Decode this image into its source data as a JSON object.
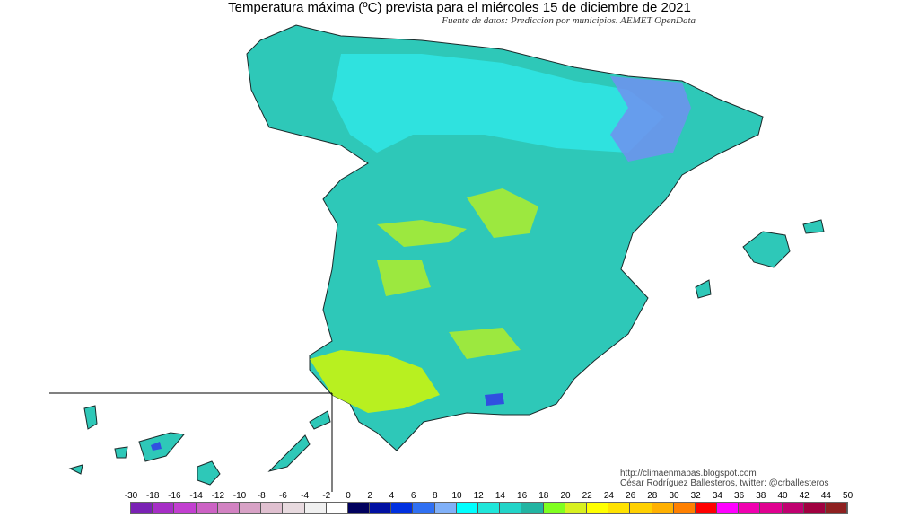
{
  "title": "Temperatura máxima (ºC) prevista para el miércoles 15 de diciembre de 2021",
  "subtitle": "Fuente de datos: Prediccion por municipios. AEMET OpenData",
  "credits": {
    "url": "http://climaenmapas.blogspot.com",
    "author": "César Rodríguez Ballesteros, twitter: @crballesteros"
  },
  "legend": {
    "labels": [
      "-30",
      "-18",
      "-16",
      "-14",
      "-12",
      "-10",
      "-8",
      "-6",
      "-4",
      "-2",
      "0",
      "2",
      "4",
      "6",
      "8",
      "10",
      "12",
      "14",
      "16",
      "18",
      "20",
      "22",
      "24",
      "26",
      "28",
      "30",
      "32",
      "34",
      "36",
      "38",
      "40",
      "42",
      "44",
      "50"
    ],
    "colors": [
      "#7a22b4",
      "#a62ec6",
      "#c23fd0",
      "#cc62c4",
      "#d282c2",
      "#d8a2c6",
      "#e0c0d0",
      "#e8dadf",
      "#f0f0f0",
      "#ffffff",
      "#00005e",
      "#0010a2",
      "#0030e0",
      "#3070f2",
      "#80b0f8",
      "#00ffff",
      "#20e6da",
      "#22d4c8",
      "#22b4a2",
      "#80ff20",
      "#d8f020",
      "#ffff00",
      "#ffe200",
      "#ffd000",
      "#ffb000",
      "#ff8000",
      "#ff0000",
      "#ff00ff",
      "#f000b0",
      "#e00090",
      "#c00070",
      "#a00040",
      "#8e2020"
    ]
  },
  "map_colors": {
    "base": "#2ec8b8",
    "cool": "#30e8e8",
    "cold": "#7090f0",
    "warm": "#b8f020",
    "sea": "#ffffff",
    "border": "#1a2a2a"
  }
}
